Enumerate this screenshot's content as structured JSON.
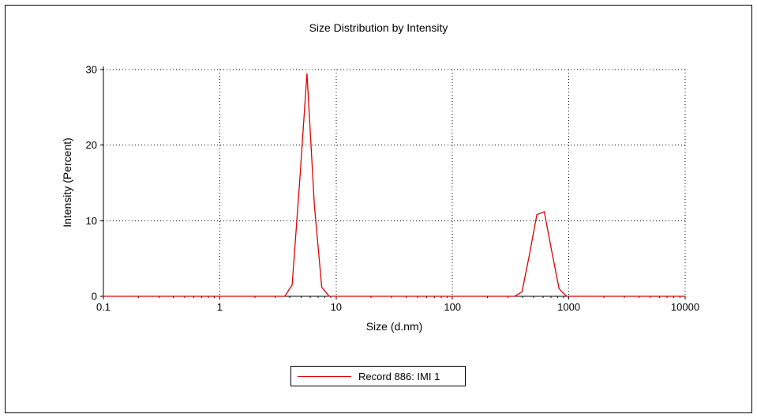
{
  "chart_data": {
    "type": "line",
    "title": "Size Distribution by Intensity",
    "xlabel": "Size (d.nm)",
    "ylabel": "Intensity (Percent)",
    "x_scale": "log",
    "xlim": [
      0.1,
      10000
    ],
    "ylim": [
      0,
      30
    ],
    "xticks": [
      0.1,
      1,
      10,
      100,
      1000,
      10000
    ],
    "xtick_labels": [
      "0.1",
      "1",
      "10",
      "100",
      "1000",
      "10000"
    ],
    "yticks": [
      0,
      10,
      20,
      30
    ],
    "ytick_labels": [
      "0",
      "10",
      "20",
      "30"
    ],
    "grid": "dotted",
    "legend_position": "bottom-center",
    "series": [
      {
        "name": "Record 886: IMI 1",
        "color": "#e00000",
        "points": [
          [
            0.1,
            0
          ],
          [
            0.5,
            0
          ],
          [
            1,
            0
          ],
          [
            2,
            0
          ],
          [
            3.122,
            0
          ],
          [
            3.615,
            0
          ],
          [
            4.187,
            1.5
          ],
          [
            4.849,
            15.0
          ],
          [
            5.615,
            29.5
          ],
          [
            6.503,
            12.0
          ],
          [
            7.531,
            1.2
          ],
          [
            8.721,
            0
          ],
          [
            10.1,
            0
          ],
          [
            50,
            0
          ],
          [
            100,
            0
          ],
          [
            255,
            0
          ],
          [
            342,
            0
          ],
          [
            396.1,
            0.6
          ],
          [
            458.7,
            5.5
          ],
          [
            531.2,
            10.8
          ],
          [
            615.1,
            11.2
          ],
          [
            712.4,
            6.0
          ],
          [
            825.0,
            1.0
          ],
          [
            955.4,
            0
          ],
          [
            1106,
            0
          ],
          [
            2000,
            0
          ],
          [
            5000,
            0
          ],
          [
            10000,
            0
          ]
        ]
      }
    ]
  }
}
